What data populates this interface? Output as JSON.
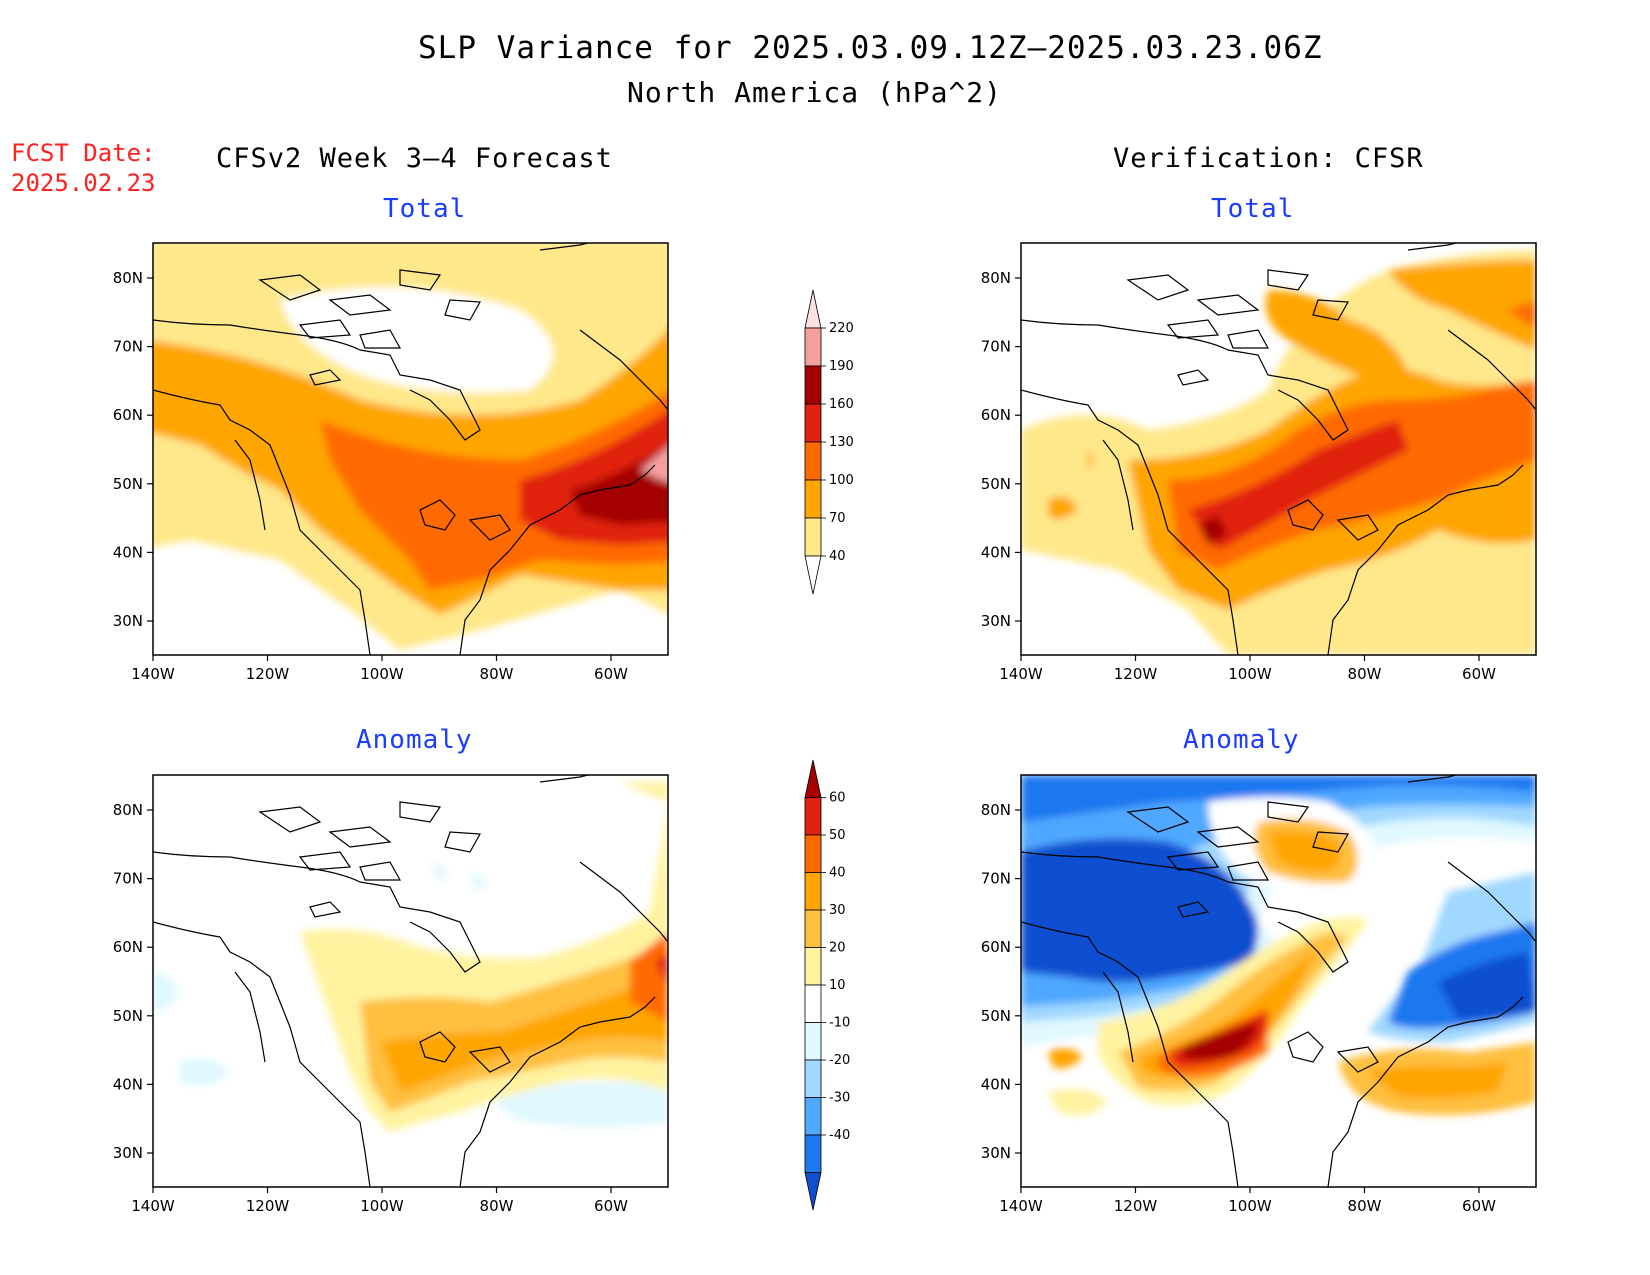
{
  "header": {
    "title": "SLP Variance for 2025.03.09.12Z—2025.03.23.06Z",
    "subtitle": "North America (hPa^2)",
    "fcst_label": "FCST Date:",
    "fcst_date": "2025.02.23"
  },
  "columns": {
    "left": "CFSv2 Week 3—4 Forecast",
    "right": "Verification: CFSR"
  },
  "panels": {
    "total_label": "Total",
    "anomaly_label": "Anomaly"
  },
  "axes": {
    "lat_ticks": [
      "80N",
      "70N",
      "60N",
      "50N",
      "40N",
      "30N"
    ],
    "lon_ticks": [
      "140W",
      "120W",
      "100W",
      "80W",
      "60W"
    ]
  },
  "colorbars": {
    "total": {
      "levels": [
        "40",
        "70",
        "100",
        "130",
        "160",
        "190",
        "220"
      ],
      "colors": [
        "#ffe88a",
        "#ffa500",
        "#ff6a00",
        "#e02010",
        "#a50000",
        "#f5a0a0",
        "#fde0e0"
      ]
    },
    "anomaly": {
      "levels": [
        "60",
        "50",
        "40",
        "30",
        "20",
        "10",
        "-10",
        "-20",
        "-30",
        "-40"
      ],
      "colors": [
        "#a50000",
        "#e02010",
        "#ff6a00",
        "#ffa500",
        "#ffc040",
        "#fff3a0",
        "#ffffff",
        "#e0f8ff",
        "#a0d8ff",
        "#50a8ff",
        "#1e78f0",
        "#1050d0"
      ]
    }
  }
}
